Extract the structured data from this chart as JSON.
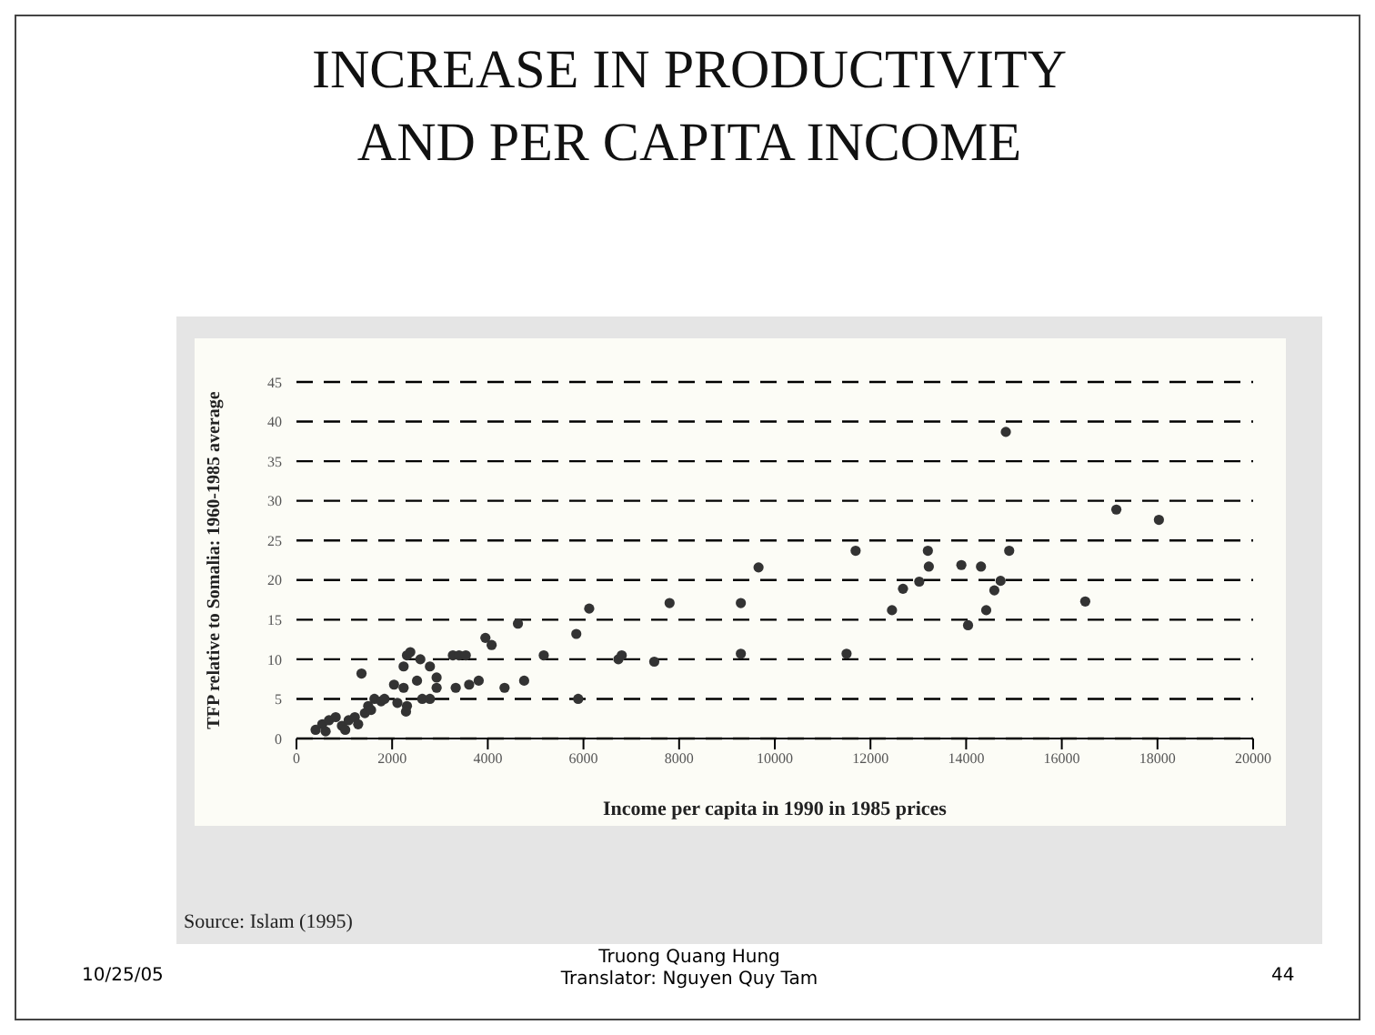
{
  "chart_data": {
    "type": "scatter",
    "title": "INCREASE IN PRODUCTIVITY AND PER CAPITA INCOME",
    "xlabel": "Income per capita in 1990 in 1985 prices",
    "ylabel": "TFP relative to Somalia: 1960-1985 average",
    "x": [
      400,
      540,
      680,
      820,
      610,
      950,
      1090,
      1020,
      1220,
      1290,
      1430,
      1500,
      1360,
      1630,
      1770,
      1560,
      1840,
      2040,
      2110,
      2310,
      2240,
      2310,
      2380,
      2240,
      2290,
      2520,
      2630,
      2790,
      2590,
      2790,
      2930,
      2930,
      3270,
      3400,
      3540,
      3330,
      3610,
      3810,
      3950,
      4080,
      4350,
      4630,
      4760,
      5170,
      5850,
      6120,
      5890,
      6730,
      6800,
      7480,
      7800,
      9290,
      9290,
      9660,
      11690,
      11500,
      12450,
      12680,
      13020,
      13200,
      13220,
      13900,
      14040,
      14310,
      14420,
      14590,
      14720,
      14830,
      14900,
      16490,
      17140,
      18030
    ],
    "values": [
      1.1,
      1.8,
      2.3,
      2.7,
      0.9,
      1.6,
      2.3,
      1.1,
      2.7,
      1.8,
      3.2,
      4.1,
      8.2,
      5,
      4.7,
      3.6,
      5,
      6.8,
      4.5,
      4.1,
      9.1,
      10.5,
      10.9,
      6.4,
      3.4,
      7.3,
      5,
      5,
      10,
      9.1,
      7.7,
      6.4,
      10.5,
      10.5,
      10.5,
      6.4,
      6.8,
      7.3,
      12.7,
      11.8,
      6.4,
      14.5,
      7.3,
      10.5,
      13.2,
      16.4,
      5,
      10,
      10.5,
      9.7,
      17.1,
      17.1,
      10.7,
      21.6,
      23.7,
      10.7,
      16.2,
      18.9,
      19.8,
      23.7,
      21.7,
      21.9,
      14.3,
      21.7,
      16.2,
      18.7,
      19.9,
      38.7,
      23.7,
      17.3,
      28.9,
      27.6
    ],
    "color": "#333333",
    "marker": "circle",
    "grid": "y",
    "xlim": [
      0,
      20000
    ],
    "xticks": [
      0,
      2000,
      4000,
      6000,
      8000,
      10000,
      12000,
      14000,
      16000,
      18000,
      20000
    ],
    "ylim": [
      0,
      45
    ],
    "yticks": [
      0,
      5,
      10,
      15,
      20,
      25,
      30,
      35,
      40,
      45
    ],
    "annotations": [
      "Source: Islam (1995)",
      "10/25/05",
      "Truong Quang Hung",
      "Translator: Nguyen Quy Tam",
      "44"
    ]
  }
}
